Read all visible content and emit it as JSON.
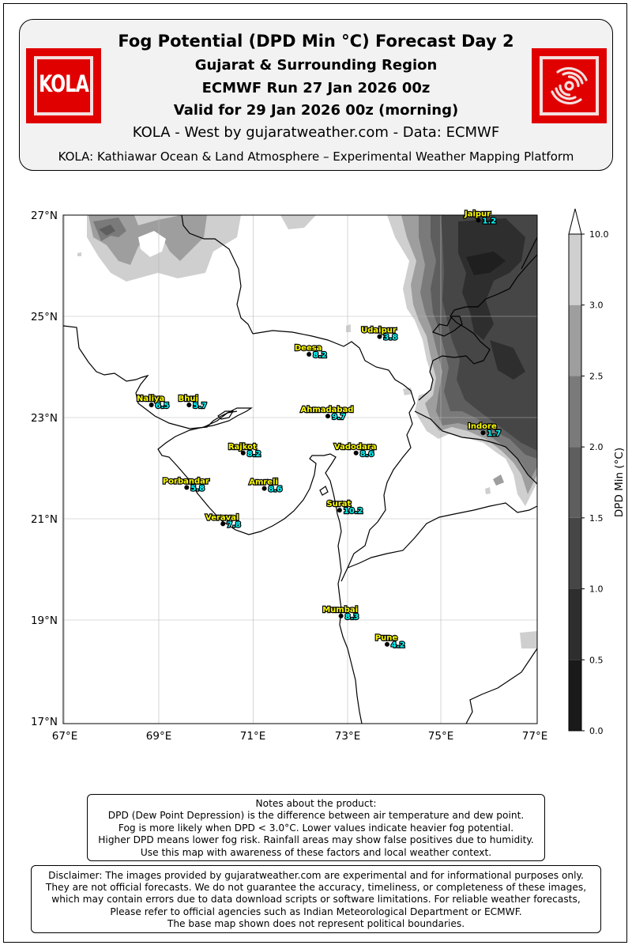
{
  "header": {
    "title": "Fog Potential (DPD Min °C) Forecast Day 2",
    "region": "Gujarat & Surrounding Region",
    "run": "ECMWF Run 27 Jan 2026 00z",
    "valid": "Valid for 29 Jan 2026 00z (morning)",
    "credit": "KOLA - West by gujaratweather.com  -  Data: ECMWF",
    "platform": "KOLA: Kathiawar Ocean & Land Atmosphere – Experimental Weather Mapping Platform",
    "logo_left_text": "KOLA",
    "logo_left_icon": "kola-logo",
    "logo_right_icon": "cyclone-icon",
    "logo_color": "#e00000"
  },
  "map": {
    "lon_ticks": [
      "67°E",
      "69°E",
      "71°E",
      "73°E",
      "75°E",
      "77°E"
    ],
    "lat_ticks": [
      "27°N",
      "25°N",
      "23°N",
      "21°N",
      "19°N",
      "17°N"
    ],
    "extent": {
      "lon_min": 67,
      "lon_max": 77,
      "lat_min": 17,
      "lat_max": 27
    },
    "gridlines": true,
    "cities": [
      {
        "name": "Jaipur",
        "value": "1.2",
        "lon": 75.8,
        "lat": 26.9
      },
      {
        "name": "Udaipur",
        "value": "3.8",
        "lon": 73.7,
        "lat": 24.6
      },
      {
        "name": "Deesa",
        "value": "8.2",
        "lon": 72.2,
        "lat": 24.25
      },
      {
        "name": "Naliya",
        "value": "6.5",
        "lon": 68.85,
        "lat": 23.25
      },
      {
        "name": "Bhuj",
        "value": "5.7",
        "lon": 69.65,
        "lat": 23.25
      },
      {
        "name": "Ahmadabad",
        "value": "9.7",
        "lon": 72.6,
        "lat": 23.03
      },
      {
        "name": "Indore",
        "value": "1.7",
        "lon": 75.9,
        "lat": 22.7
      },
      {
        "name": "Rajkot",
        "value": "8.2",
        "lon": 70.8,
        "lat": 22.3
      },
      {
        "name": "Vadodara",
        "value": "8.6",
        "lon": 73.2,
        "lat": 22.3
      },
      {
        "name": "Porbandar",
        "value": "5.8",
        "lon": 69.6,
        "lat": 21.62
      },
      {
        "name": "Amreli",
        "value": "8.6",
        "lon": 71.25,
        "lat": 21.6
      },
      {
        "name": "Surat",
        "value": "10.2",
        "lon": 72.85,
        "lat": 21.17
      },
      {
        "name": "Veraval",
        "value": "7.8",
        "lon": 70.37,
        "lat": 20.9
      },
      {
        "name": "Mumbai",
        "value": "8.3",
        "lon": 72.88,
        "lat": 19.08
      },
      {
        "name": "Pune",
        "value": "4.2",
        "lon": 73.86,
        "lat": 18.52
      }
    ]
  },
  "colorbar": {
    "label": "DPD Min (°C)",
    "ticks": [
      "0.0",
      "0.5",
      "1.0",
      "1.5",
      "2.0",
      "2.5",
      "3.0",
      "10.0"
    ],
    "colors": [
      "#1a1a1a",
      "#2e2e2e",
      "#464646",
      "#5e5e5e",
      "#7a7a7a",
      "#9e9e9e",
      "#cfcfcf",
      "#ffffff"
    ]
  },
  "notes": {
    "lines": [
      "Notes about the product:",
      "DPD (Dew Point Depression) is the difference between air temperature and dew point.",
      "Fog is more likely when DPD < 3.0°C. Lower values indicate heavier fog potential.",
      "Higher DPD means lower fog risk. Rainfall areas may show false positives due to humidity.",
      "Use this map with awareness of these factors and local weather context."
    ]
  },
  "disclaimer": {
    "lines": [
      "Disclaimer: The images provided by gujaratweather.com are experimental and for informational purposes only.",
      "They are not official forecasts. We do not guarantee the accuracy, timeliness, or completeness of these images,",
      "which may contain errors due to data download scripts or software limitations. For reliable weather forecasts,",
      "Please refer to official agencies such as Indian Meteorological Department or ECMWF.",
      "The base map shown does not represent political boundaries."
    ]
  }
}
